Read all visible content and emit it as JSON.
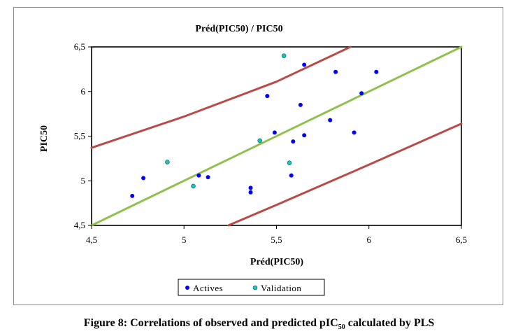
{
  "chart_data": {
    "type": "scatter",
    "title": "Préd(PIC50) / PIC50",
    "xlabel": "Préd(PIC50)",
    "ylabel": "PIC50",
    "xlim": [
      4.5,
      6.5
    ],
    "ylim": [
      4.5,
      6.5
    ],
    "xticks": [
      "4,5",
      "5",
      "5,5",
      "6",
      "6,5"
    ],
    "yticks": [
      "4,5",
      "5",
      "5,5",
      "6",
      "6,5"
    ],
    "grid": false,
    "legend_position": "bottom",
    "series": [
      {
        "name": "Actives",
        "color": "#0000ff",
        "points": [
          [
            4.72,
            4.83
          ],
          [
            4.78,
            5.03
          ],
          [
            5.08,
            5.06
          ],
          [
            5.13,
            5.04
          ],
          [
            5.36,
            4.92
          ],
          [
            5.36,
            4.87
          ],
          [
            5.45,
            5.95
          ],
          [
            5.49,
            5.54
          ],
          [
            5.58,
            5.06
          ],
          [
            5.59,
            5.44
          ],
          [
            5.63,
            5.85
          ],
          [
            5.65,
            5.51
          ],
          [
            5.65,
            6.3
          ],
          [
            5.79,
            5.68
          ],
          [
            5.82,
            6.22
          ],
          [
            5.92,
            5.54
          ],
          [
            5.96,
            5.98
          ],
          [
            6.04,
            6.22
          ]
        ]
      },
      {
        "name": "Validation",
        "color": "#20c0c0",
        "points": [
          [
            4.91,
            5.21
          ],
          [
            5.05,
            4.94
          ],
          [
            5.41,
            5.45
          ],
          [
            5.57,
            5.2
          ],
          [
            5.54,
            6.4
          ]
        ]
      }
    ],
    "lines": [
      {
        "role": "fit",
        "color": "#92c050",
        "points": [
          [
            4.5,
            4.5
          ],
          [
            6.5,
            6.5
          ]
        ]
      },
      {
        "role": "upper-band",
        "color": "#b84a48",
        "points": [
          [
            4.5,
            5.37
          ],
          [
            5.0,
            5.72
          ],
          [
            5.5,
            6.11
          ],
          [
            5.9,
            6.5
          ]
        ]
      },
      {
        "role": "lower-band",
        "color": "#b84a48",
        "points": [
          [
            5.24,
            4.5
          ],
          [
            5.5,
            4.73
          ],
          [
            6.0,
            5.18
          ],
          [
            6.5,
            5.64
          ]
        ]
      }
    ]
  },
  "caption": {
    "prefix": "Figure 8: Correlations of observed and predicted pIC",
    "subscript": "50",
    "suffix": " calculated by PLS"
  }
}
